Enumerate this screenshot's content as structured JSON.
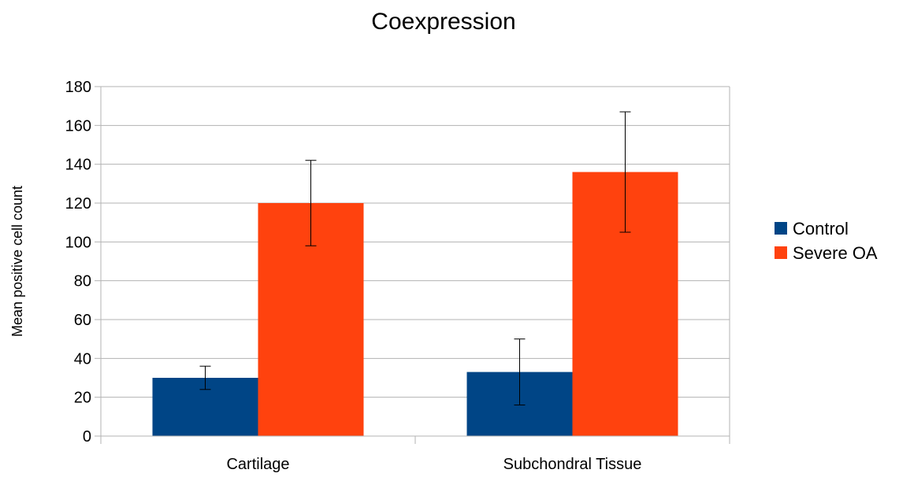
{
  "chart_data": {
    "type": "bar",
    "title": "Coexpression",
    "xlabel": "",
    "ylabel": "Mean positive cell count",
    "ylim": [
      0,
      180
    ],
    "yticks": [
      0,
      20,
      40,
      60,
      80,
      100,
      120,
      140,
      160,
      180
    ],
    "grid": true,
    "legend_position": "right",
    "categories": [
      "Cartilage",
      "Subchondral Tissue"
    ],
    "series": [
      {
        "name": "Control",
        "color": "#004586",
        "values": [
          30,
          33
        ],
        "error_low": [
          24,
          16
        ],
        "error_high": [
          36,
          50
        ]
      },
      {
        "name": "Severe OA",
        "color": "#ff420e",
        "values": [
          120,
          136
        ],
        "error_low": [
          98,
          105
        ],
        "error_high": [
          142,
          167
        ]
      }
    ]
  }
}
